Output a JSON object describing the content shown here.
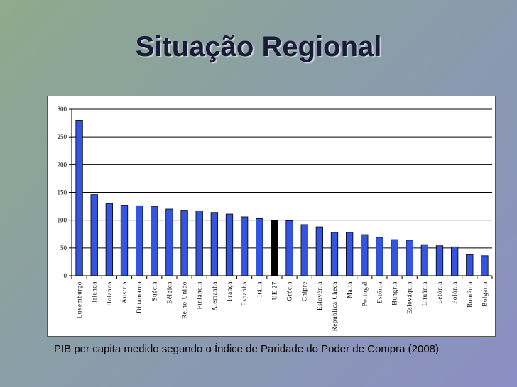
{
  "slide": {
    "title": "Situação Regional",
    "caption": "PIB per capita medido segundo o Índice de Paridade do Poder de Compra (2008)"
  },
  "colors": {
    "bar": "#3355e0",
    "highlight": "#000000",
    "grid": "#000000"
  },
  "chart_data": {
    "type": "bar",
    "categories": [
      "Luxemburgo",
      "Irlanda",
      "Holanda",
      "Áustria",
      "Dinamarca",
      "Suécia",
      "Bélgica",
      "Reino Unido",
      "Finlândia",
      "Alemanha",
      "França",
      "Espanha",
      "Itália",
      "UE 27",
      "Grécia",
      "Chipre",
      "Eslovénia",
      "República Checa",
      "Malta",
      "Portugal",
      "Estónia",
      "Hungria",
      "Eslováquia",
      "Lituânia",
      "Letónia",
      "Polónia",
      "Roménia",
      "Bulgária"
    ],
    "values": [
      279,
      146,
      130,
      127,
      126,
      125,
      120,
      118,
      117,
      114,
      111,
      106,
      103,
      100,
      99,
      92,
      88,
      78,
      78,
      74,
      69,
      65,
      64,
      56,
      54,
      52,
      38,
      36
    ],
    "highlight": "UE 27",
    "ylim": [
      0,
      300
    ],
    "yticks": [
      0,
      50,
      100,
      150,
      200,
      250,
      300
    ],
    "grid": true
  }
}
